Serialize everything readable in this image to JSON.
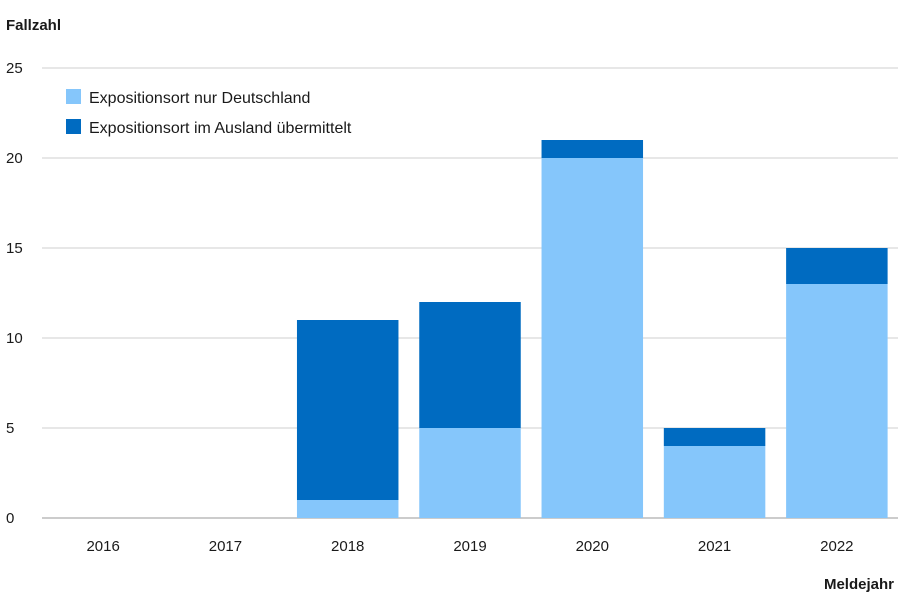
{
  "chart_data": {
    "type": "bar",
    "stacked": true,
    "ylabel": "Fallzahl",
    "xlabel": "Meldejahr",
    "categories": [
      "2016",
      "2017",
      "2018",
      "2019",
      "2020",
      "2021",
      "2022"
    ],
    "ylim": [
      0,
      25
    ],
    "yticks": [
      0,
      5,
      10,
      15,
      20,
      25
    ],
    "grid": true,
    "legend_position": "top-left",
    "series": [
      {
        "name": "Expositionsort nur Deutschland",
        "color": "#85c6fb",
        "values": [
          0,
          0,
          1,
          5,
          20,
          4,
          13
        ]
      },
      {
        "name": "Expositionsort im Ausland übermittelt",
        "color": "#006bc1",
        "values": [
          0,
          0,
          10,
          7,
          1,
          1,
          2
        ]
      }
    ]
  }
}
